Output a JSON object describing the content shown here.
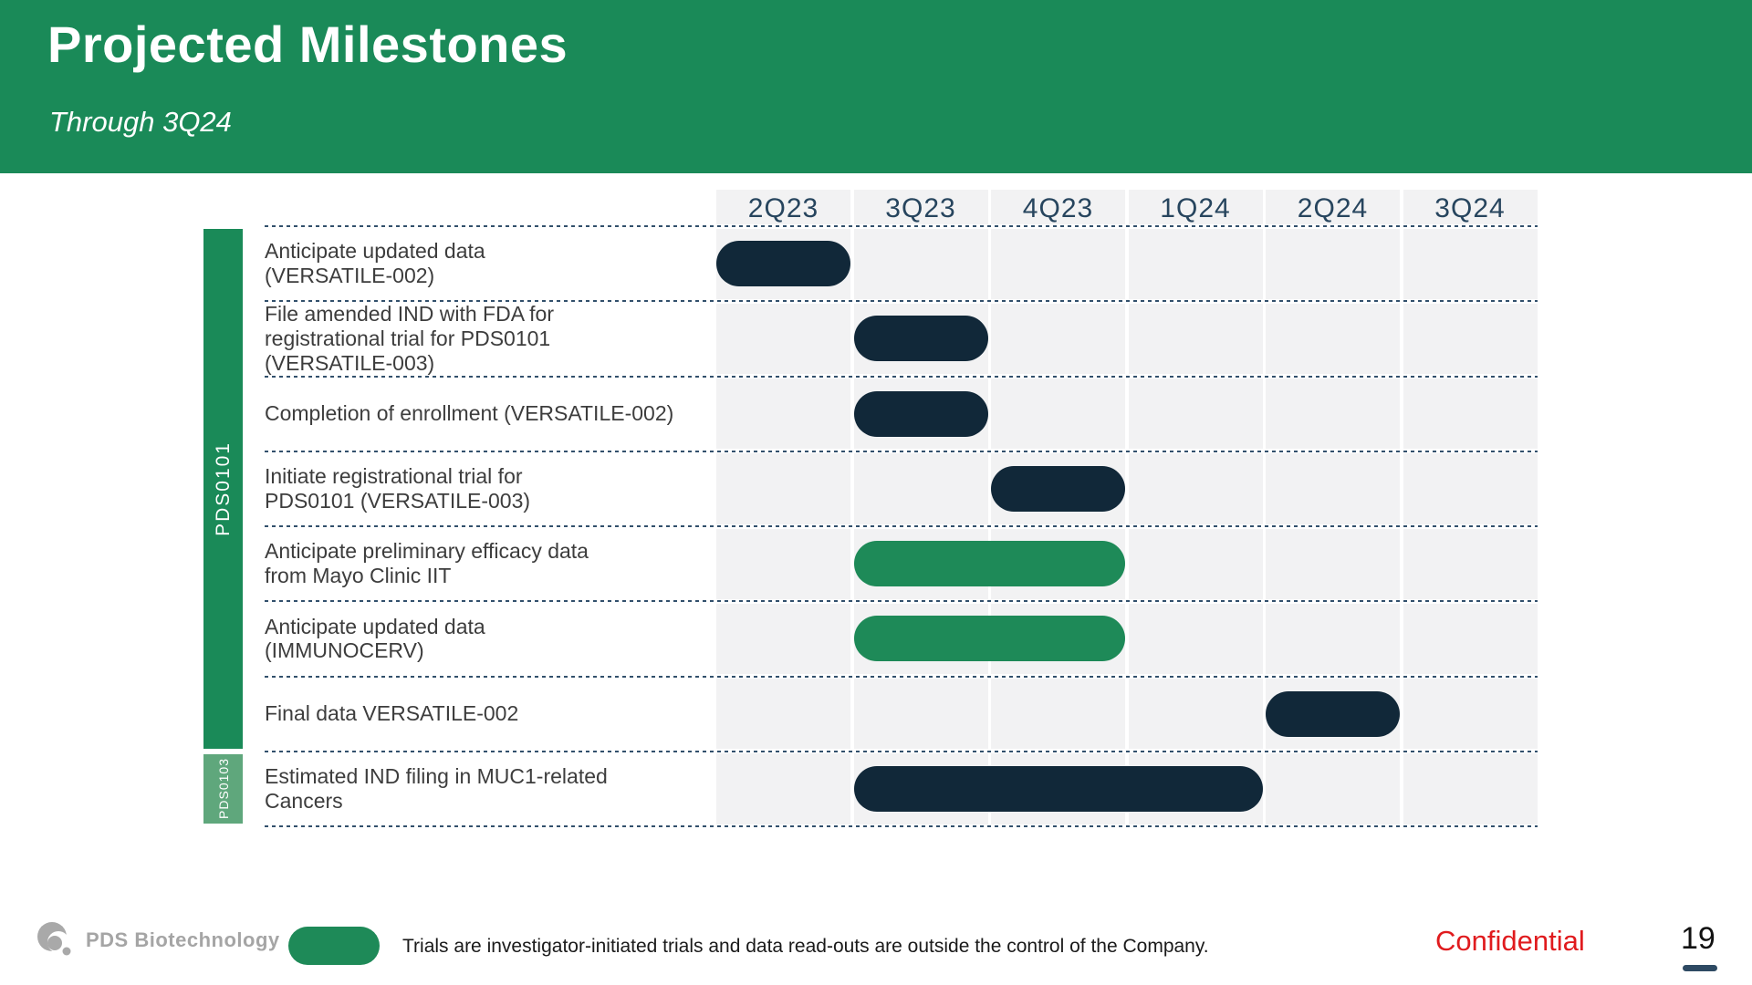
{
  "header": {
    "title": "Projected Milestones",
    "subtitle": "Through 3Q24"
  },
  "colors": {
    "header_green": "#1A8A58",
    "bar_green": "#1E8A58",
    "bar_navy": "#112839",
    "pds0103_green": "#5FA77C",
    "column_bg": "#F2F2F3",
    "quarter_text": "#27455E",
    "sep_color": "#32506C",
    "label_text": "#3D3D3D",
    "logo_gray": "#A5A5A5",
    "confidential_red": "#E01B1E",
    "page_dash": "#2E4A63"
  },
  "chart_data": {
    "type": "gantt",
    "title": "Projected Milestones",
    "subtitle": "Through 3Q24",
    "quarters": [
      "2Q23",
      "3Q23",
      "4Q23",
      "1Q24",
      "2Q24",
      "3Q24"
    ],
    "groups": [
      {
        "label": "PDS0101",
        "row_start": 0,
        "row_end": 6,
        "shade": "dark"
      },
      {
        "label": "PDS0103",
        "row_start": 7,
        "row_end": 7,
        "shade": "light"
      }
    ],
    "rows": [
      {
        "label_lines": [
          "Anticipate updated data",
          "(VERSATILE-002)"
        ],
        "start": "2Q23",
        "end": "2Q23",
        "color": "navy"
      },
      {
        "label_lines": [
          "File amended IND with FDA for",
          "registrational trial for PDS0101",
          "(VERSATILE-003)"
        ],
        "start": "3Q23",
        "end": "3Q23",
        "color": "navy"
      },
      {
        "label_lines": [
          "Completion of enrollment (VERSATILE-002)"
        ],
        "start": "3Q23",
        "end": "3Q23",
        "color": "navy"
      },
      {
        "label_lines": [
          "Initiate registrational trial for",
          "PDS0101 (VERSATILE-003)"
        ],
        "start": "4Q23",
        "end": "4Q23",
        "color": "navy"
      },
      {
        "label_lines": [
          "Anticipate preliminary efficacy data",
          "from Mayo Clinic IIT"
        ],
        "start": "3Q23",
        "end": "4Q23",
        "color": "green"
      },
      {
        "label_lines": [
          "Anticipate updated data",
          "(IMMUNOCERV)"
        ],
        "start": "3Q23",
        "end": "4Q23",
        "color": "green"
      },
      {
        "label_lines": [
          "Final data VERSATILE-002"
        ],
        "start": "2Q24",
        "end": "2Q24",
        "color": "navy"
      },
      {
        "label_lines": [
          "Estimated IND filing in MUC1-related",
          "Cancers"
        ],
        "start": "3Q23",
        "end": "1Q24",
        "color": "navy"
      }
    ],
    "legend_position": "bottom"
  },
  "footer": {
    "logo_text": "PDS Biotechnology",
    "legend_note": "Trials are investigator-initiated trials and data read-outs are outside the control of the Company.",
    "confidential_label": "Confidential",
    "page_number": "19"
  }
}
